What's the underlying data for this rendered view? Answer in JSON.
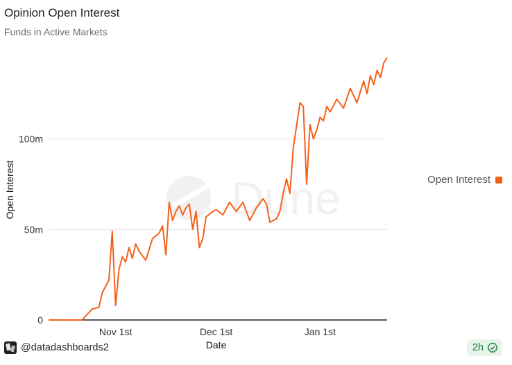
{
  "header": {
    "title": "Opinion Open Interest",
    "subtitle": "Funds in Active Markets"
  },
  "legend": {
    "label": "Open Interest"
  },
  "watermark": {
    "text": "Dune"
  },
  "footer": {
    "user": "@datadashboards2",
    "refresh": "2h"
  },
  "colors": {
    "series": "#f4601a",
    "grid": "#e6e6e6",
    "axis": "#222222",
    "badge_bg": "#e6f4ea",
    "badge_fg": "#1d7a3a"
  },
  "icons": {
    "avatar": "user-avatar-icon",
    "refresh": "check-circle-icon",
    "watermark": "dune-logo-icon"
  },
  "chart_data": {
    "type": "line",
    "xlabel": "Date",
    "ylabel": "Open Interest",
    "x_ticks": [
      {
        "value": "2025-11-01",
        "label": "Nov 1st"
      },
      {
        "value": "2025-12-01",
        "label": "Dec 1st"
      },
      {
        "value": "2026-01-01",
        "label": "Jan 1st"
      }
    ],
    "xlim": [
      "2025-10-12",
      "2026-01-21"
    ],
    "y_ticks": [
      {
        "value": 0,
        "label": "0"
      },
      {
        "value": 50000000,
        "label": "50m"
      },
      {
        "value": 100000000,
        "label": "100m"
      }
    ],
    "ylim": [
      0,
      150000000
    ],
    "grid": "horizontal",
    "legend_position": "right",
    "series": [
      {
        "name": "Open Interest",
        "color": "#f4601a",
        "x": [
          "2025-10-12",
          "2025-10-16",
          "2025-10-20",
          "2025-10-22",
          "2025-10-23",
          "2025-10-25",
          "2025-10-27",
          "2025-10-28",
          "2025-10-30",
          "2025-10-31",
          "2025-11-01",
          "2025-11-02",
          "2025-11-03",
          "2025-11-04",
          "2025-11-05",
          "2025-11-06",
          "2025-11-07",
          "2025-11-08",
          "2025-11-10",
          "2025-11-12",
          "2025-11-14",
          "2025-11-15",
          "2025-11-16",
          "2025-11-17",
          "2025-11-18",
          "2025-11-19",
          "2025-11-20",
          "2025-11-21",
          "2025-11-22",
          "2025-11-23",
          "2025-11-24",
          "2025-11-25",
          "2025-11-26",
          "2025-11-27",
          "2025-11-28",
          "2025-11-30",
          "2025-12-01",
          "2025-12-03",
          "2025-12-05",
          "2025-12-07",
          "2025-12-09",
          "2025-12-11",
          "2025-12-13",
          "2025-12-15",
          "2025-12-16",
          "2025-12-17",
          "2025-12-19",
          "2025-12-20",
          "2025-12-21",
          "2025-12-22",
          "2025-12-23",
          "2025-12-24",
          "2025-12-26",
          "2025-12-27",
          "2025-12-28",
          "2025-12-29",
          "2025-12-30",
          "2025-12-31",
          "2026-01-01",
          "2026-01-02",
          "2026-01-03",
          "2026-01-04",
          "2026-01-06",
          "2026-01-08",
          "2026-01-10",
          "2026-01-12",
          "2026-01-14",
          "2026-01-15",
          "2026-01-16",
          "2026-01-17",
          "2026-01-18",
          "2026-01-19",
          "2026-01-20",
          "2026-01-21"
        ],
        "values": [
          0,
          0,
          0,
          0,
          2000000,
          6000000,
          7000000,
          15000000,
          22000000,
          49000000,
          8000000,
          28000000,
          35000000,
          32000000,
          40000000,
          34000000,
          42000000,
          38000000,
          33000000,
          45000000,
          48000000,
          52000000,
          36000000,
          65000000,
          55000000,
          60000000,
          63000000,
          58000000,
          62000000,
          64000000,
          50000000,
          60000000,
          40000000,
          45000000,
          57000000,
          60000000,
          61000000,
          58000000,
          65000000,
          60000000,
          65000000,
          55000000,
          62000000,
          67000000,
          64000000,
          54000000,
          56000000,
          60000000,
          70000000,
          78000000,
          70000000,
          95000000,
          120000000,
          118000000,
          75000000,
          108000000,
          100000000,
          105000000,
          112000000,
          110000000,
          118000000,
          115000000,
          122000000,
          117000000,
          128000000,
          120000000,
          132000000,
          125000000,
          135000000,
          130000000,
          138000000,
          134000000,
          142000000,
          145000000
        ]
      }
    ]
  }
}
